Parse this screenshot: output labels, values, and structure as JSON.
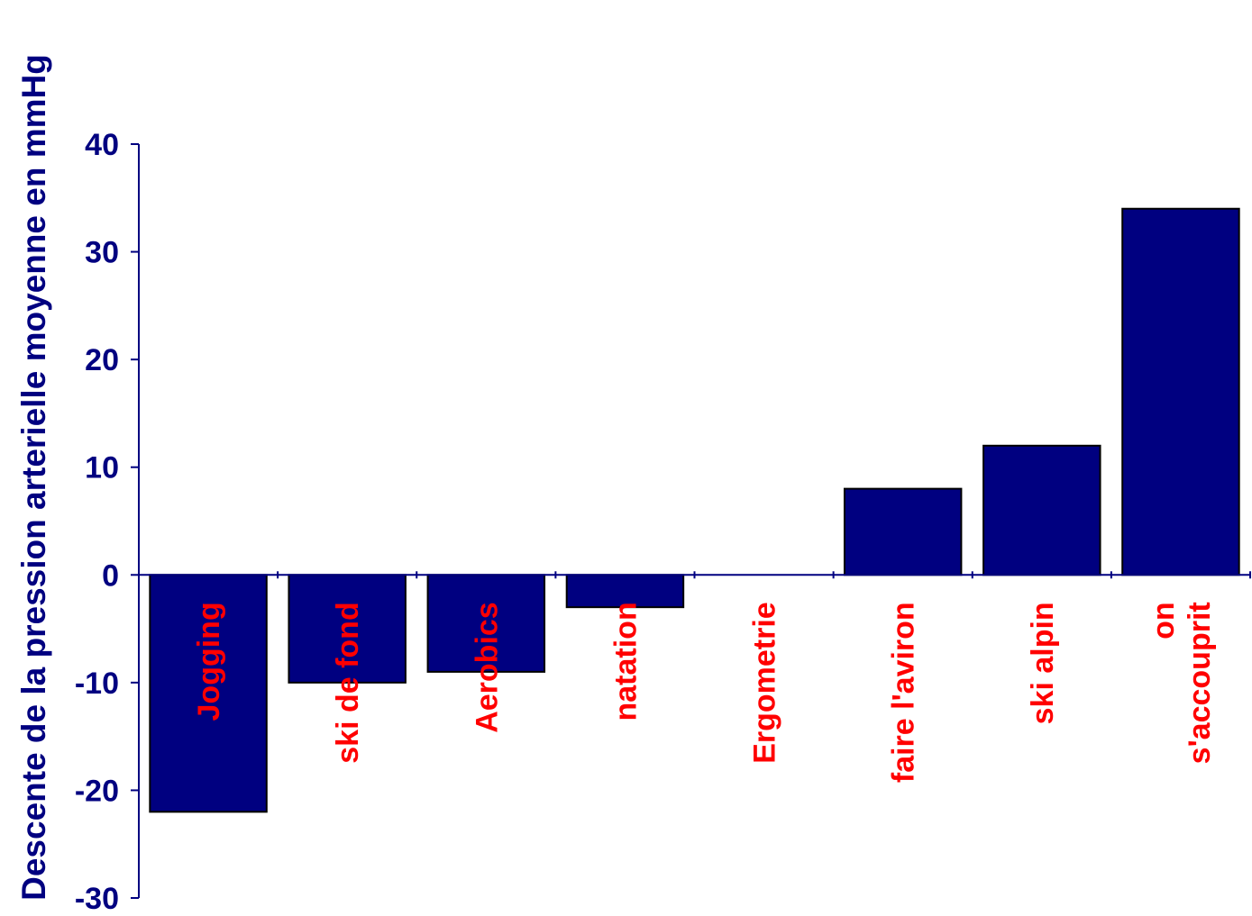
{
  "chart_data": {
    "type": "bar",
    "title": "",
    "xlabel": "",
    "ylabel": "Descente de la pression arterielle moyenne en mmHg",
    "ylim": [
      -30,
      40
    ],
    "yticks": [
      40,
      30,
      20,
      10,
      0,
      -10,
      -20,
      -30
    ],
    "grid": false,
    "colors": {
      "bar": "#000080",
      "axis": "#000080",
      "category_label": "#ff0000"
    },
    "categories": [
      {
        "lines": [
          "Jogging"
        ],
        "value": -22
      },
      {
        "lines": [
          "ski de fond"
        ],
        "value": -10
      },
      {
        "lines": [
          "Aerobics"
        ],
        "value": -9
      },
      {
        "lines": [
          "natation"
        ],
        "value": -3
      },
      {
        "lines": [
          "Ergometrie"
        ],
        "value": 0
      },
      {
        "lines": [
          "faire l'aviron"
        ],
        "value": 8
      },
      {
        "lines": [
          "ski alpin"
        ],
        "value": 12
      },
      {
        "lines": [
          "on",
          "s'accouprit"
        ],
        "value": 34
      }
    ]
  }
}
